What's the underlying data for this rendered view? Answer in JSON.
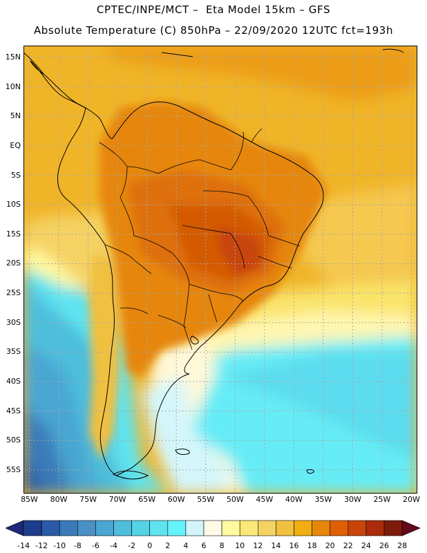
{
  "header": {
    "title_line1": "CPTEC/INPE/MCT –  Eta Model 15km – GFS",
    "title_line2": "Absolute Temperature (C) 850hPa – 22/09/2020 12UTC fct=193h"
  },
  "map": {
    "projection": "lat-lon",
    "lon_range": [
      -86,
      -19
    ],
    "lat_range": [
      17,
      -59
    ],
    "lat_labels": [
      "15N",
      "10N",
      "5N",
      "EQ",
      "5S",
      "10S",
      "15S",
      "20S",
      "25S",
      "30S",
      "35S",
      "40S",
      "45S",
      "50S",
      "55S"
    ],
    "lat_values": [
      15,
      10,
      5,
      0,
      -5,
      -10,
      -15,
      -20,
      -25,
      -30,
      -35,
      -40,
      -45,
      -50,
      -55
    ],
    "lon_labels": [
      "85W",
      "80W",
      "75W",
      "70W",
      "65W",
      "60W",
      "55W",
      "50W",
      "45W",
      "40W",
      "35W",
      "30W",
      "25W",
      "20W"
    ],
    "lon_values": [
      -85,
      -80,
      -75,
      -70,
      -65,
      -60,
      -55,
      -50,
      -45,
      -40,
      -35,
      -30,
      -25,
      -20
    ],
    "temperature_field": {
      "tropical_continent": "16-20",
      "central_brazil_max": "22-26",
      "southern_pacific": "-6 to 2",
      "southern_atlantic": "2-6"
    }
  },
  "colorbar": {
    "labels": [
      "-14",
      "-12",
      "-10",
      "-8",
      "-6",
      "-4",
      "-2",
      "0",
      "2",
      "4",
      "6",
      "8",
      "10",
      "12",
      "14",
      "16",
      "18",
      "20",
      "22",
      "24",
      "26",
      "28"
    ],
    "colors": [
      "#1e3c8c",
      "#2b5ba8",
      "#3a7ab8",
      "#4a90c4",
      "#4aa6d2",
      "#4ebedc",
      "#56d2e6",
      "#5ee4f0",
      "#66f2fa",
      "#d2f4fa",
      "#fffae6",
      "#fffaa0",
      "#fae878",
      "#f5d264",
      "#f0c040",
      "#f0ae10",
      "#e6860a",
      "#de5f05",
      "#c8440a",
      "#aa2c0a",
      "#7d1a0a"
    ],
    "low_arrow_color": "#1e2878",
    "high_arrow_color": "#640a1e"
  }
}
